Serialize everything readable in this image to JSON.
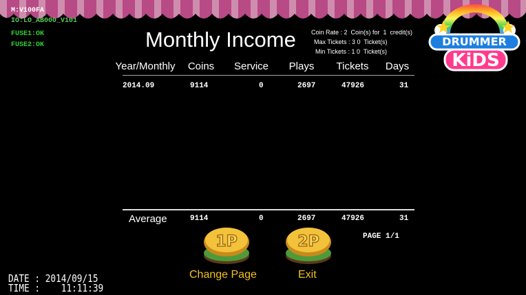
{
  "status": {
    "model": "M:V100FA",
    "io": "IO:LO_AB000_V101",
    "fuse1": "FUSE1:OK",
    "fuse2": "FUSE2:OK"
  },
  "header": {
    "title": "Monthly Income",
    "settings": [
      "Coin Rate : 2  Coin(s) for  1  credit(s)",
      "Max Tickets : 3 0  Ticket(s)",
      "Min Tickets : 1 0  Ticket(s)"
    ],
    "logo": {
      "line1": "DRUMMER",
      "line2": "KiDS"
    }
  },
  "table": {
    "columns": [
      "Year/Monthly",
      "Coins",
      "Service",
      "Plays",
      "Tickets",
      "Days"
    ],
    "rows": [
      [
        "2014.09",
        "9114",
        "0",
        "2697",
        "47926",
        "31"
      ]
    ],
    "average": [
      "Average",
      "9114",
      "0",
      "2697",
      "47926",
      "31"
    ]
  },
  "page": "PAGE 1/1",
  "buttons": [
    {
      "icon": "1P",
      "label": "Change Page"
    },
    {
      "icon": "2P",
      "label": "Exit"
    }
  ],
  "footer": {
    "date": "DATE : 2014/09/15",
    "time": "TIME :    11:11:39"
  }
}
